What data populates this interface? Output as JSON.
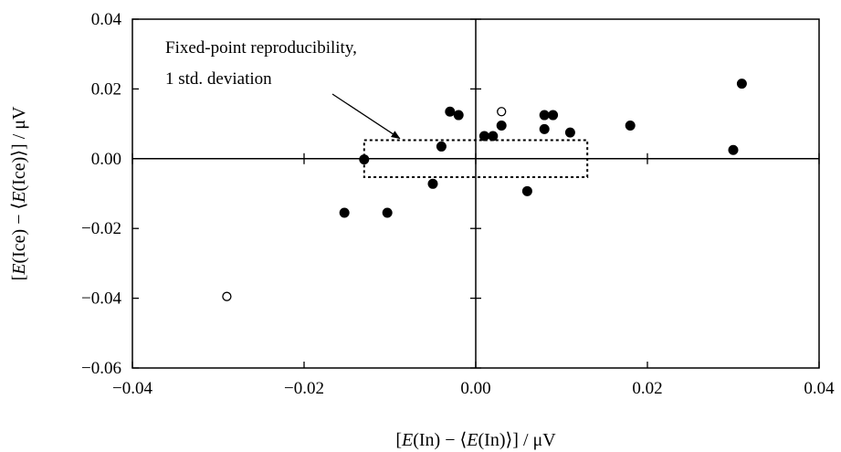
{
  "chart_data": {
    "type": "scatter",
    "title": "",
    "xlabel": {
      "prefix": "[",
      "italic_var": "E",
      "mid": "(In) − ⟨",
      "italic_var2": "E",
      "suffix": "(In)⟩] / μV"
    },
    "ylabel": {
      "prefix": "[",
      "italic_var": "E",
      "mid": "(Ice) − ⟨",
      "italic_var2": "E",
      "suffix": "(Ice)⟩] / μV"
    },
    "xlim": [
      -0.04,
      0.04
    ],
    "ylim": [
      -0.06,
      0.04
    ],
    "xticks": [
      -0.04,
      -0.02,
      0.0,
      0.02,
      0.04
    ],
    "xtick_labels": [
      "−0.04",
      "−0.02",
      "0.00",
      "0.02",
      "0.04"
    ],
    "yticks": [
      -0.06,
      -0.04,
      -0.02,
      0.0,
      0.02,
      0.04
    ],
    "ytick_labels": [
      "−0.06",
      "−0.04",
      "−0.02",
      "0.00",
      "0.02",
      "0.04"
    ],
    "grid": false,
    "zero_lines": true,
    "series": [
      {
        "marker": "filled-circle",
        "color": "#000000",
        "points": [
          {
            "x": -0.0153,
            "y": -0.0155
          },
          {
            "x": -0.0103,
            "y": -0.0155
          },
          {
            "x": -0.013,
            "y": -0.0002
          },
          {
            "x": -0.005,
            "y": -0.0072
          },
          {
            "x": -0.004,
            "y": 0.0035
          },
          {
            "x": -0.003,
            "y": 0.0135
          },
          {
            "x": -0.002,
            "y": 0.0125
          },
          {
            "x": 0.001,
            "y": 0.0065
          },
          {
            "x": 0.002,
            "y": 0.0065
          },
          {
            "x": 0.003,
            "y": 0.0095
          },
          {
            "x": 0.006,
            "y": -0.0093
          },
          {
            "x": 0.008,
            "y": 0.0125
          },
          {
            "x": 0.009,
            "y": 0.0125
          },
          {
            "x": 0.008,
            "y": 0.0085
          },
          {
            "x": 0.011,
            "y": 0.0075
          },
          {
            "x": 0.018,
            "y": 0.0095
          },
          {
            "x": 0.03,
            "y": 0.0025
          },
          {
            "x": 0.031,
            "y": 0.0215
          }
        ]
      },
      {
        "marker": "open-circle",
        "color": "#000000",
        "points": [
          {
            "x": -0.029,
            "y": -0.0395
          },
          {
            "x": 0.003,
            "y": 0.0135
          }
        ]
      }
    ],
    "reproducibility_box": {
      "x_range": [
        -0.013,
        0.013
      ],
      "y_range": [
        -0.0053,
        0.0053
      ],
      "style": "dotted"
    },
    "annotation": {
      "line1": "Fixed-point reproducibility,",
      "line2": "1 std. deviation",
      "points_to": {
        "x": -0.0095,
        "y": 0.0053
      }
    }
  }
}
